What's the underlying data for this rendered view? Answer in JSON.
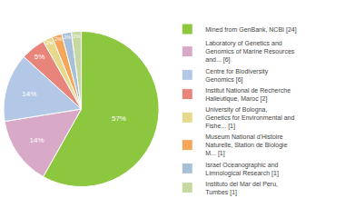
{
  "chart_data": {
    "type": "pie",
    "categories": [
      "Mined from GenBank, NCBI [24]",
      "Laboratory of Genetics and\nGenomics of Marine Resources\nand... [6]",
      "Centre for Biodiversity\nGenomics [6]",
      "Institut National de Recherche\nHalieutique, Maroc [2]",
      "University of Bologna,\nGenetics for Environmental and\nFishe... [1]",
      "Museum National d'Histoire\nNaturelle, Station de Biologie\nM... [1]",
      "Israel Oceanographic and\nLimnological Research [1]",
      "Instituto del Mar del Peru,\nTumbes [1]"
    ],
    "values": [
      57,
      14,
      14,
      5,
      2,
      2,
      2,
      2
    ],
    "value_labels": [
      "57%",
      "14%",
      "14%",
      "5%",
      "2%",
      "2%",
      "2%",
      "2%"
    ],
    "colors": [
      "#8DC63F",
      "#D9A9C8",
      "#B3C7E6",
      "#E8857A",
      "#E6D98C",
      "#F5A65B",
      "#A8C0D6",
      "#C5D9A0"
    ],
    "data_labels": true,
    "legend": "right"
  }
}
